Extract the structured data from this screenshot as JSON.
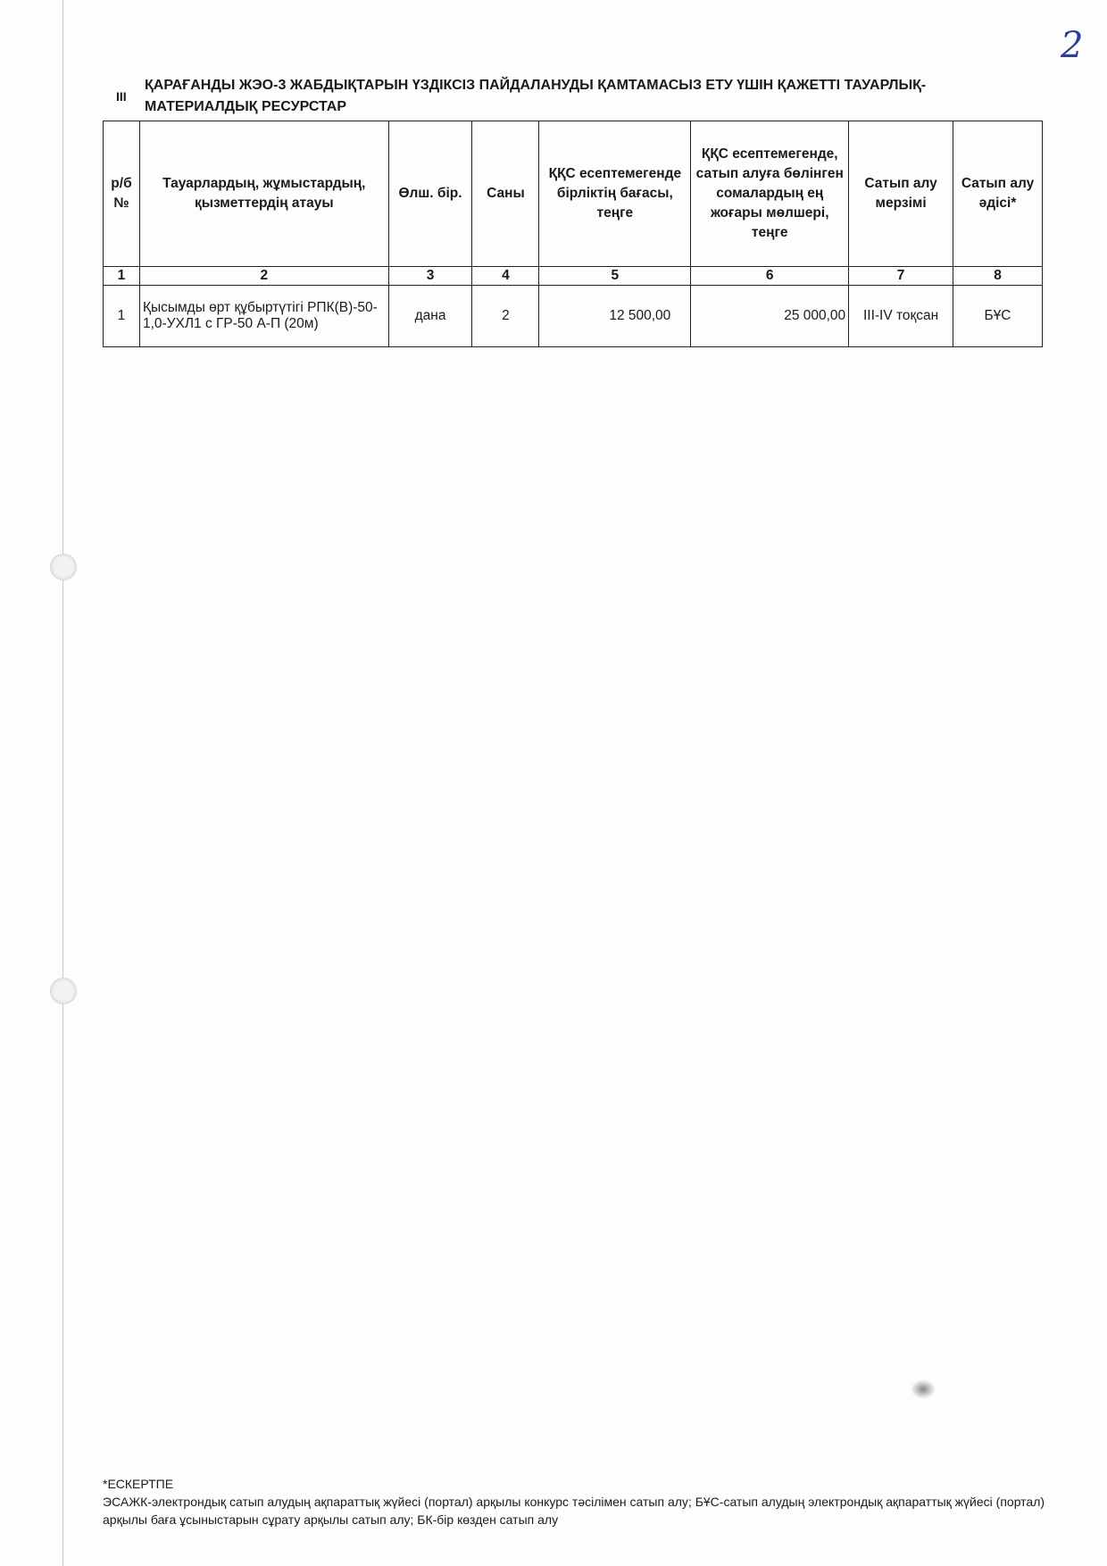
{
  "page_number": "2",
  "section_number": "III",
  "title": "ҚАРАҒАНДЫ ЖЭО-3 ЖАБДЫҚТАРЫН ҮЗДІКСІЗ ПАЙДАЛАНУДЫ ҚАМТАМАСЫЗ ЕТУ ҮШІН ҚАЖЕТТІ ТАУАРЛЫҚ-МАТЕРИАЛДЫҚ РЕСУРСТАР",
  "table": {
    "headers": [
      "р/б №",
      "Тауарлардың, жұмыстардың, қызметтердің атауы",
      "Өлш. бір.",
      "Саны",
      "ҚҚС есептемегенде бірліктің бағасы, теңге",
      "ҚҚС есептемегенде, сатып алуға бөлінген сомалардың ең жоғары мөлшері, теңге",
      "Сатып алу мерзімі",
      "Сатып алу әдісі*"
    ],
    "column_numbers": [
      "1",
      "2",
      "3",
      "4",
      "5",
      "6",
      "7",
      "8"
    ],
    "rows": [
      [
        "1",
        "Қысымды өрт құбыртүтігі РПК(В)-50-1,0-УХЛ1 с ГР-50 А-П (20м)",
        "дана",
        "2",
        "12 500,00",
        "25 000,00",
        "III-IV тоқсан",
        "БҰС"
      ]
    ]
  },
  "footnote": {
    "title": "*ЕСКЕРТПЕ",
    "text": "ЭСАЖК-электрондық сатып алудың ақпараттық жүйесі (портал) арқылы конкурс тәсілімен сатып алу; БҰС-сатып алудың электрондық ақпараттық жүйесі (портал) арқылы баға ұсыныстарын сұрату арқылы сатып алу; БК-бір көзден сатып алу"
  }
}
